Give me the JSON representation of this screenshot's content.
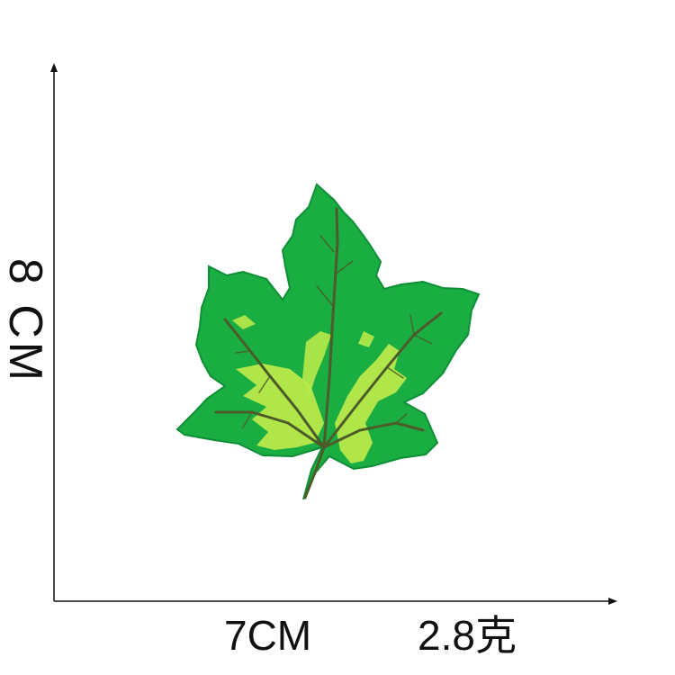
{
  "dimensions": {
    "height": "8 CM",
    "width": "7CM",
    "weight": "2.8克"
  },
  "colors": {
    "leaf_green": "#19ad42",
    "leaf_dark_green": "#0e8f35",
    "leaf_highlight": "#b8e94a",
    "vein": "#4d5a2a",
    "axis": "#111111"
  }
}
